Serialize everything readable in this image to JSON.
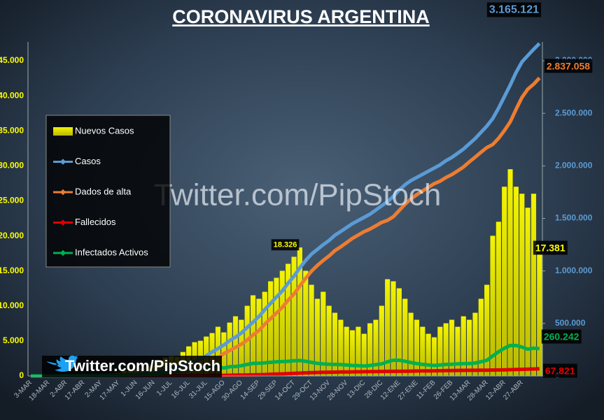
{
  "chart_data": {
    "type": "combo",
    "title": "CORONAVIRUS ARGENTINA",
    "watermarks": [
      "Twitter.com/PipStoch",
      "Twitter.com/PipStoch"
    ],
    "categories": [
      "3-MAR",
      null,
      null,
      "18-MAR",
      null,
      null,
      "2-ABR",
      null,
      null,
      "17-ABR",
      null,
      null,
      "2-MAY",
      null,
      null,
      "17-MAY",
      null,
      null,
      "1-JUN",
      null,
      null,
      "16-JUN",
      null,
      null,
      "1-JUL",
      null,
      null,
      "16-JUL",
      null,
      null,
      "31-JUL",
      null,
      null,
      "15-AGO",
      null,
      null,
      "30-AGO",
      null,
      null,
      "14-SEP",
      null,
      null,
      "29-SEP",
      null,
      null,
      "14-OCT",
      null,
      null,
      "29-OCT",
      null,
      null,
      "13-NOV",
      null,
      null,
      "28-NOV",
      null,
      null,
      "13-DIC",
      null,
      null,
      "28-DIC",
      null,
      null,
      "12-ENE",
      null,
      null,
      "27-ENE",
      null,
      null,
      "11-FEB",
      null,
      null,
      "26-FEB",
      null,
      null,
      "13-MAR",
      null,
      null,
      "28-MAR",
      null,
      null,
      "12-ABR",
      null,
      null,
      "27-ABR",
      null,
      null,
      null
    ],
    "ylim": [
      0,
      47700
    ],
    "yticks": [
      0,
      {
        "value": 5000,
        "label": "5.000"
      },
      {
        "value": 10000,
        "label": "10.000"
      },
      {
        "value": 15000,
        "label": "15.000"
      },
      {
        "value": 20000,
        "label": "20.000"
      },
      {
        "value": 25000,
        "label": "25.000"
      },
      {
        "value": 30000,
        "label": "30.000"
      },
      {
        "value": 35000,
        "label": "35.000"
      },
      {
        "value": 40000,
        "label": "40.000"
      },
      {
        "value": 45000,
        "label": "45.000"
      }
    ],
    "y2lim": [
      0,
      3180000
    ],
    "y2ticks": [
      0,
      {
        "value": 500000,
        "label": "500.000"
      },
      {
        "value": 1000000,
        "label": "1.000.000"
      },
      {
        "value": 1500000,
        "label": "1.500.000"
      },
      {
        "value": 2000000,
        "label": "2.000.000"
      },
      {
        "value": 2500000,
        "label": "2.500.000"
      },
      {
        "value": 3000000,
        "label": "3.000.000"
      }
    ],
    "grid": true,
    "series": [
      {
        "name": "Nuevos Casos",
        "type": "bar",
        "color": "#e6e600",
        "values": [
          0,
          5,
          10,
          30,
          80,
          100,
          90,
          80,
          110,
          90,
          100,
          120,
          150,
          240,
          300,
          400,
          700,
          800,
          900,
          1000,
          1400,
          1500,
          2000,
          2600,
          2800,
          2700,
          3400,
          4200,
          4800,
          5000,
          5600,
          6100,
          7000,
          6200,
          7600,
          8500,
          8000,
          10000,
          11500,
          11000,
          12000,
          13500,
          14000,
          15000,
          16000,
          17000,
          18326,
          15000,
          13000,
          11000,
          12000,
          10000,
          9000,
          8000,
          7000,
          6500,
          7000,
          6000,
          7500,
          8000,
          10000,
          13800,
          13500,
          12500,
          11000,
          9000,
          8000,
          7000,
          6000,
          5500,
          7000,
          7500,
          8000,
          7000,
          8500,
          8000,
          9000,
          11000,
          13000,
          20000,
          22000,
          27000,
          29500,
          27000,
          26000,
          24000,
          26000,
          17381
        ],
        "value_labels": [
          null,
          null,
          null,
          null,
          null,
          null,
          null,
          null,
          null,
          null,
          null,
          null,
          null,
          null,
          null,
          null,
          null,
          null,
          null,
          null,
          null,
          null,
          null,
          null,
          null,
          null,
          null,
          null,
          null,
          null,
          null,
          null,
          null,
          null,
          null,
          null,
          null,
          null,
          null,
          null,
          null,
          null,
          null,
          null,
          null,
          null,
          "18.326",
          null,
          null,
          null,
          null,
          null,
          null,
          null,
          null,
          null,
          null,
          null,
          null,
          null,
          null,
          null,
          null,
          null,
          null,
          null,
          null,
          null,
          null,
          null,
          null,
          null,
          null,
          null,
          null,
          null,
          null,
          null,
          null,
          null,
          null,
          null,
          null,
          null,
          null,
          null,
          null,
          "17.381"
        ]
      },
      {
        "name": "Casos",
        "type": "line",
        "axis": "y2",
        "color": "#5b9bd5",
        "values": [
          1,
          17,
          31,
          79,
          301,
          690,
          1265,
          1715,
          2142,
          2930,
          3435,
          4003,
          4770,
          5776,
          6563,
          8068,
          10649,
          14702,
          17415,
          22020,
          27373,
          34159,
          44931,
          55343,
          67197,
          80447,
          97509,
          114783,
          136118,
          162526,
          191302,
          228195,
          260911,
          294569,
          336802,
          370188,
          408426,
          461882,
          512293,
          565446,
          631365,
          691235,
          751001,
          809728,
          883882,
          949063,
          1030000,
          1100000,
          1160000,
          1205000,
          1250000,
          1290000,
          1340000,
          1375000,
          1413000,
          1450000,
          1480000,
          1510000,
          1540000,
          1580000,
          1620000,
          1660000,
          1710000,
          1770000,
          1820000,
          1860000,
          1890000,
          1920000,
          1950000,
          1980000,
          2010000,
          2050000,
          2080000,
          2120000,
          2160000,
          2210000,
          2260000,
          2320000,
          2380000,
          2450000,
          2550000,
          2660000,
          2770000,
          2890000,
          2990000,
          3050000,
          3110000,
          3165121
        ],
        "value_labels": [
          null,
          null,
          null,
          null,
          null,
          null,
          null,
          null,
          null,
          null,
          null,
          null,
          null,
          null,
          null,
          null,
          null,
          null,
          null,
          null,
          null,
          null,
          null,
          null,
          null,
          null,
          null,
          null,
          null,
          null,
          null,
          null,
          null,
          null,
          null,
          null,
          null,
          null,
          null,
          null,
          null,
          null,
          null,
          null,
          null,
          null,
          null,
          null,
          null,
          null,
          null,
          null,
          null,
          null,
          null,
          null,
          null,
          null,
          null,
          null,
          null,
          null,
          null,
          null,
          null,
          null,
          null,
          null,
          null,
          null,
          null,
          null,
          null,
          null,
          null,
          null,
          null,
          null,
          null,
          null,
          null,
          null,
          null,
          null,
          null,
          null,
          null,
          "3.165.121"
        ]
      },
      {
        "name": "Dados de alta",
        "type": "line",
        "axis": "y2",
        "color": "#ed7d31",
        "values": [
          0,
          0,
          1,
          2,
          27,
          92,
          326,
          640,
          947,
          1094,
          1270,
          1603,
          1924,
          2483,
          2944,
          3286,
          3916,
          5194,
          6876,
          8379,
          11608,
          13313,
          18920,
          24193,
          29846,
          35865,
          43664,
          52671,
          66599,
          85577,
          103706,
          128589,
          168549,
          213521,
          241817,
          272349,
          301886,
          342259,
          390635,
          431779,
          492883,
          544716,
          598000,
          652700,
          721200,
          778800,
          855500,
          930300,
          998400,
          1052000,
          1100500,
          1142200,
          1193200,
          1229300,
          1269500,
          1310500,
          1341800,
          1374200,
          1398600,
          1429900,
          1462000,
          1481400,
          1515900,
          1575300,
          1634600,
          1685800,
          1725000,
          1762100,
          1796200,
          1830500,
          1854800,
          1889100,
          1916400,
          1952700,
          1990000,
          2038400,
          2082800,
          2130200,
          2174500,
          2203700,
          2262600,
          2336400,
          2420000,
          2538500,
          2651500,
          2730000,
          2778500,
          2837058
        ],
        "value_labels": [
          null,
          null,
          null,
          null,
          null,
          null,
          null,
          null,
          null,
          null,
          null,
          null,
          null,
          null,
          null,
          null,
          null,
          null,
          null,
          null,
          null,
          null,
          null,
          null,
          null,
          null,
          null,
          null,
          null,
          null,
          null,
          null,
          null,
          null,
          null,
          null,
          null,
          null,
          null,
          null,
          null,
          null,
          null,
          null,
          null,
          null,
          null,
          null,
          null,
          null,
          null,
          null,
          null,
          null,
          null,
          null,
          null,
          null,
          null,
          null,
          null,
          null,
          null,
          null,
          null,
          null,
          null,
          null,
          null,
          null,
          null,
          null,
          null,
          null,
          null,
          null,
          null,
          null,
          null,
          null,
          null,
          null,
          null,
          null,
          null,
          null,
          null,
          "2.837.058"
        ]
      },
      {
        "name": "Fallecidos",
        "type": "line",
        "axis": "y2",
        "color": "#e00000",
        "values": [
          0,
          1,
          1,
          2,
          4,
          18,
          39,
          75,
          95,
          136,
          165,
          200,
          246,
          293,
          319,
          382,
          433,
          508,
          539,
          641,
          765,
          846,
          1011,
          1150,
          1351,
          1582,
          1845,
          2112,
          2519,
          2949,
          3596,
          4606,
          5362,
          6048,
          6985,
          7839,
          8540,
          9623,
          10658,
          11667,
          13482,
          16519,
          18000,
          20000,
          22700,
          25300,
          27500,
          29700,
          31600,
          33000,
          34500,
          35800,
          36800,
          37700,
          38500,
          39500,
          40200,
          40800,
          41400,
          42100,
          43000,
          43600,
          44100,
          44700,
          45400,
          46200,
          47000,
          47900,
          48800,
          49500,
          50200,
          50900,
          51600,
          52300,
          53000,
          53600,
          54200,
          54800,
          55500,
          56300,
          57400,
          58600,
          60000,
          61500,
          63500,
          65000,
          66500,
          67821
        ],
        "value_labels": [
          null,
          null,
          null,
          null,
          null,
          null,
          null,
          null,
          null,
          null,
          null,
          null,
          null,
          null,
          null,
          null,
          null,
          null,
          null,
          null,
          null,
          null,
          null,
          null,
          null,
          null,
          null,
          null,
          null,
          null,
          null,
          null,
          null,
          null,
          null,
          null,
          null,
          null,
          null,
          null,
          null,
          null,
          null,
          null,
          null,
          null,
          null,
          null,
          null,
          null,
          null,
          null,
          null,
          null,
          null,
          null,
          null,
          null,
          null,
          null,
          null,
          null,
          null,
          null,
          null,
          null,
          null,
          null,
          null,
          null,
          null,
          null,
          null,
          null,
          null,
          null,
          null,
          null,
          null,
          null,
          null,
          null,
          null,
          null,
          null,
          null,
          null,
          "67.821"
        ]
      },
      {
        "name": "Infectados Activos",
        "type": "line",
        "axis": "y2",
        "color": "#00b050",
        "values": [
          1,
          16,
          29,
          75,
          270,
          580,
          900,
          1000,
          1100,
          1700,
          2000,
          2200,
          2600,
          3000,
          3300,
          4400,
          6300,
          9000,
          10000,
          13000,
          15000,
          20000,
          25000,
          30000,
          36000,
          43000,
          52000,
          60000,
          67000,
          74000,
          84000,
          95000,
          87000,
          75000,
          88000,
          90000,
          98000,
          110000,
          120000,
          122000,
          125000,
          130000,
          135000,
          137000,
          140000,
          145000,
          147000,
          140000,
          130000,
          120000,
          115000,
          112000,
          110000,
          108000,
          105000,
          100000,
          98000,
          95000,
          100000,
          108000,
          115000,
          135000,
          150000,
          150000,
          140000,
          128000,
          118000,
          110000,
          105000,
          100000,
          105000,
          110000,
          112000,
          115000,
          117000,
          118000,
          123000,
          135000,
          150000,
          190000,
          230000,
          265000,
          290000,
          290000,
          275000,
          255000,
          265000,
          260242
        ],
        "value_labels": [
          null,
          null,
          null,
          null,
          null,
          null,
          null,
          null,
          null,
          null,
          null,
          null,
          null,
          null,
          null,
          null,
          null,
          null,
          null,
          null,
          null,
          null,
          null,
          null,
          null,
          null,
          null,
          null,
          null,
          null,
          null,
          null,
          null,
          null,
          null,
          null,
          null,
          null,
          null,
          null,
          null,
          null,
          null,
          null,
          null,
          null,
          null,
          null,
          null,
          null,
          null,
          null,
          null,
          null,
          null,
          null,
          null,
          null,
          null,
          null,
          null,
          null,
          null,
          null,
          null,
          null,
          null,
          null,
          null,
          null,
          null,
          null,
          null,
          null,
          null,
          null,
          null,
          null,
          null,
          null,
          null,
          null,
          null,
          null,
          null,
          null,
          null,
          "260.242"
        ]
      }
    ]
  }
}
